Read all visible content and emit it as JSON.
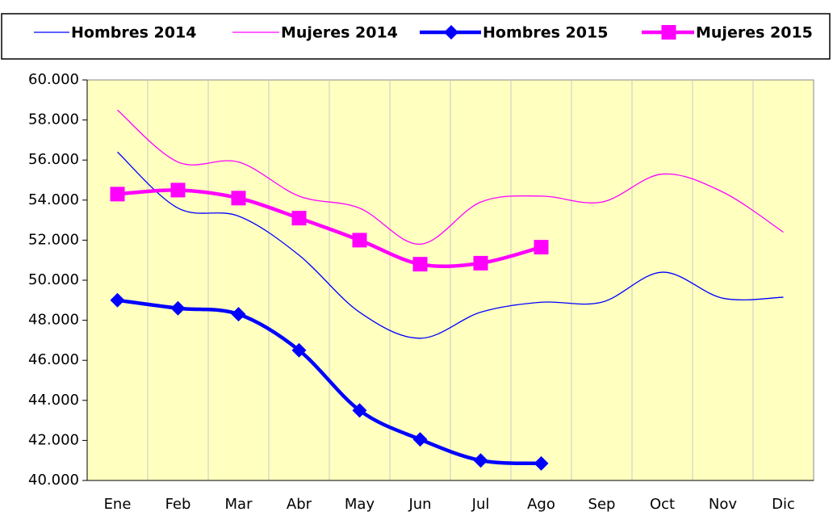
{
  "chart_data": {
    "type": "line",
    "categories": [
      "Ene",
      "Feb",
      "Mar",
      "Abr",
      "May",
      "Jun",
      "Jul",
      "Ago",
      "Sep",
      "Oct",
      "Nov",
      "Dic"
    ],
    "series": [
      {
        "name": "Hombres 2014",
        "color": "#0000ff",
        "marker": null,
        "values": [
          56400,
          53600,
          53200,
          51250,
          48400,
          47100,
          48400,
          48900,
          48900,
          50400,
          49100,
          49150
        ]
      },
      {
        "name": "Mujeres 2014",
        "color": "#ff00ff",
        "marker": null,
        "values": [
          58500,
          55900,
          55900,
          54200,
          53600,
          51800,
          53900,
          54200,
          53900,
          55300,
          54400,
          52400
        ]
      },
      {
        "name": "Hombres 2015",
        "color": "#0000ff",
        "marker": "diamond",
        "values": [
          49000,
          48600,
          48300,
          46500,
          43500,
          42050,
          41000,
          40850,
          null,
          null,
          null,
          null
        ]
      },
      {
        "name": "Mujeres 2015",
        "color": "#ff00ff",
        "marker": "square",
        "values": [
          54300,
          54500,
          54100,
          53100,
          52000,
          50800,
          50850,
          51650,
          null,
          null,
          null,
          null
        ]
      }
    ],
    "ylim": [
      40000,
      60000
    ],
    "yticks": [
      {
        "value": 40000,
        "label": "40.000"
      },
      {
        "value": 42000,
        "label": "42.000"
      },
      {
        "value": 44000,
        "label": "44.000"
      },
      {
        "value": 46000,
        "label": "46.000"
      },
      {
        "value": 48000,
        "label": "48.000"
      },
      {
        "value": 50000,
        "label": "50.000"
      },
      {
        "value": 52000,
        "label": "52.000"
      },
      {
        "value": 54000,
        "label": "54.000"
      },
      {
        "value": 56000,
        "label": "56.000"
      },
      {
        "value": 58000,
        "label": "58.000"
      },
      {
        "value": 60000,
        "label": "60.000"
      }
    ],
    "grid": true,
    "legend": "top"
  }
}
